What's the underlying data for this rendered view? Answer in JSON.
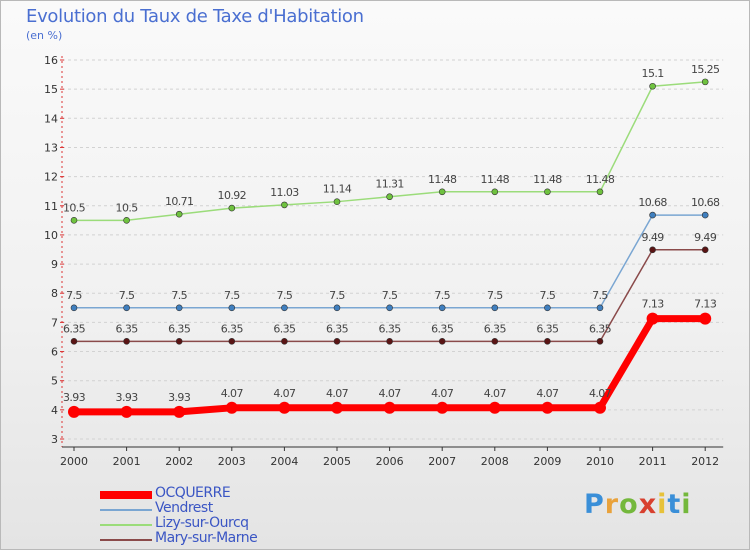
{
  "chart_data": {
    "type": "line",
    "title": "Evolution du Taux de Taxe d'Habitation",
    "subtitle": "(en %)",
    "xlabel": "",
    "ylabel": "",
    "ylim": [
      3,
      16
    ],
    "yticks": [
      "3",
      "4",
      "5",
      "6",
      "7",
      "8",
      "9",
      "10",
      "11",
      "12",
      "13",
      "14",
      "15",
      "16"
    ],
    "categories": [
      "2000",
      "2001",
      "2002",
      "2003",
      "2004",
      "2005",
      "2006",
      "2007",
      "2008",
      "2009",
      "2010",
      "2011",
      "2012"
    ],
    "series": [
      {
        "name": "OCQUERRE",
        "color": "#ff0000",
        "marker": "#ff0000",
        "width": 7,
        "values": [
          3.93,
          3.93,
          3.93,
          4.07,
          4.07,
          4.07,
          4.07,
          4.07,
          4.07,
          4.07,
          4.07,
          7.13,
          7.13
        ],
        "labels": [
          "3.93",
          "3.93",
          "3.93",
          "4.07",
          "4.07",
          "4.07",
          "4.07",
          "4.07",
          "4.07",
          "4.07",
          "4.07",
          "7.13",
          "7.13"
        ]
      },
      {
        "name": "Vendrest",
        "color": "#7aa6d2",
        "marker": "#3f7fbf",
        "width": 1.5,
        "values": [
          7.5,
          7.5,
          7.5,
          7.5,
          7.5,
          7.5,
          7.5,
          7.5,
          7.5,
          7.5,
          7.5,
          10.68,
          10.68
        ],
        "labels": [
          "7.5",
          "7.5",
          "7.5",
          "7.5",
          "7.5",
          "7.5",
          "7.5",
          "7.5",
          "7.5",
          "7.5",
          "7.5",
          "10.68",
          "10.68"
        ]
      },
      {
        "name": "Lizy-sur-Ourcq",
        "color": "#9bdc7a",
        "marker": "#6fc23f",
        "width": 1.5,
        "values": [
          10.5,
          10.5,
          10.71,
          10.92,
          11.03,
          11.14,
          11.31,
          11.48,
          11.48,
          11.48,
          11.48,
          15.1,
          15.25
        ],
        "labels": [
          "10.5",
          "10.5",
          "10.71",
          "10.92",
          "11.03",
          "11.14",
          "11.31",
          "11.48",
          "11.48",
          "11.48",
          "11.48",
          "15.1",
          "15.25"
        ]
      },
      {
        "name": "Mary-sur-Marne",
        "color": "#8a4a4a",
        "marker": "#5a1414",
        "width": 1.5,
        "values": [
          6.35,
          6.35,
          6.35,
          6.35,
          6.35,
          6.35,
          6.35,
          6.35,
          6.35,
          6.35,
          6.35,
          9.49,
          9.49
        ],
        "labels": [
          "6.35",
          "6.35",
          "6.35",
          "6.35",
          "6.35",
          "6.35",
          "6.35",
          "6.35",
          "6.35",
          "6.35",
          "6.35",
          "9.49",
          "9.49"
        ]
      }
    ]
  },
  "logo": {
    "letters": [
      "P",
      "r",
      "o",
      "x",
      "i",
      "t",
      "i"
    ],
    "colors": [
      "#3a8fd8",
      "#e9a23b",
      "#74b83c",
      "#d8402e",
      "#e7c23a",
      "#3a8fd8",
      "#74b83c"
    ]
  }
}
